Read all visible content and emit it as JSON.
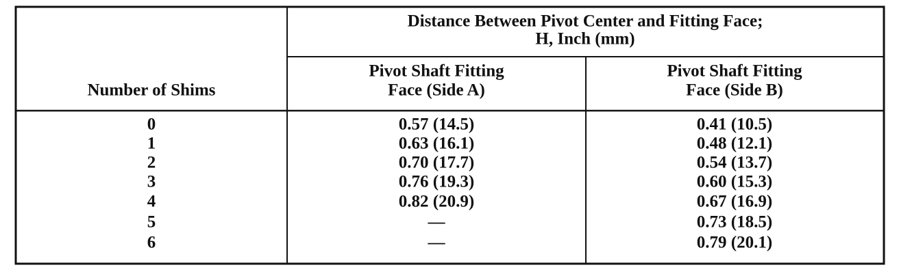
{
  "table": {
    "group_header": [
      "Distance Between Pivot Center and Fitting Face;",
      "H, Inch (mm)"
    ],
    "columns": [
      [
        "Number of Shims"
      ],
      [
        "Pivot Shaft Fitting",
        "Face (Side A)"
      ],
      [
        "Pivot Shaft Fitting",
        "Face (Side B)"
      ]
    ],
    "rows": [
      [
        "0",
        "0.57 (14.5)",
        "0.41 (10.5)"
      ],
      [
        "1",
        "0.63 (16.1)",
        "0.48 (12.1)"
      ],
      [
        "2",
        "0.70 (17.7)",
        "0.54 (13.7)"
      ],
      [
        "3",
        "0.76 (19.3)",
        "0.60 (15.3)"
      ],
      [
        "4",
        "0.82 (20.9)",
        "0.67 (16.9)"
      ],
      [
        "5",
        "—",
        "0.73 (18.5)"
      ],
      [
        "6",
        "—",
        "0.79 (20.1)"
      ]
    ]
  }
}
